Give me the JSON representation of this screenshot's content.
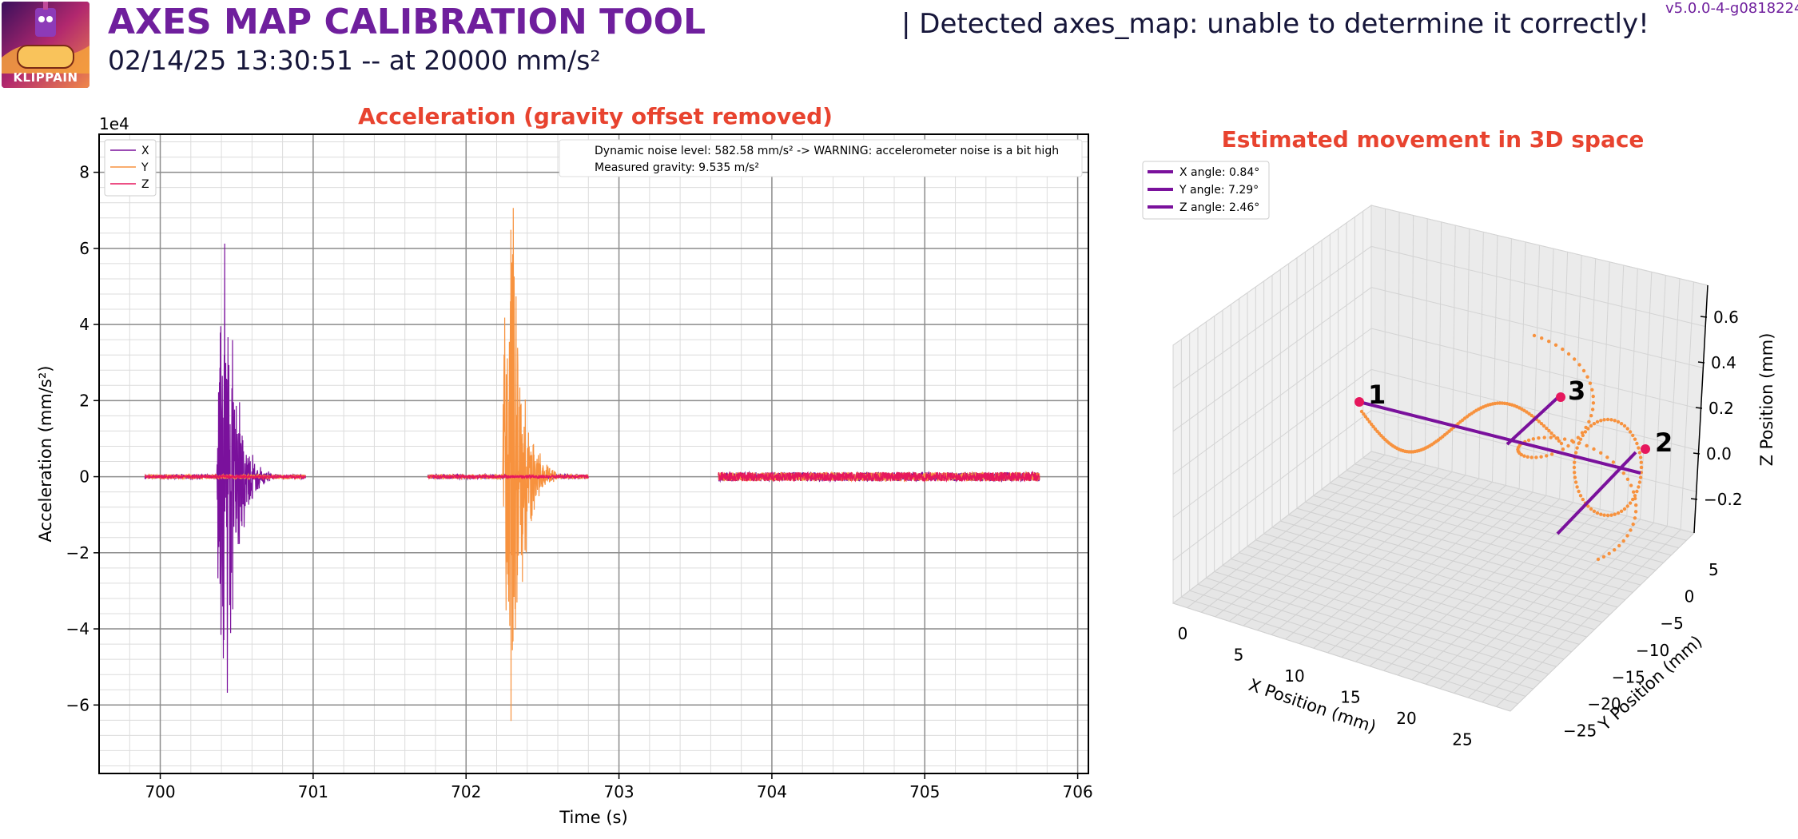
{
  "header": {
    "logo_text": "KLIPPAIN",
    "title": "AXES MAP CALIBRATION TOOL",
    "subtitle": "02/14/25 13:30:51 -- at 20000 mm/s²",
    "detected": "| Detected axes_map: unable to determine it correctly!",
    "version": "v5.0.0-4-g0818224"
  },
  "colors": {
    "x": "#7a119c",
    "y": "#f7923e",
    "z": "#e6175d",
    "title": "#e8432f",
    "brand": "#6f1f9d"
  },
  "chart_data": [
    {
      "type": "line",
      "title": "Acceleration (gravity offset removed)",
      "xlabel": "Time (s)",
      "ylabel": "Acceleration (mm/s²)",
      "y_scale_label": "1e4",
      "xlim": [
        699.6,
        706.07
      ],
      "ylim": [
        -7.8,
        9.0
      ],
      "x_ticks": [
        "700",
        "701",
        "702",
        "703",
        "704",
        "705",
        "706"
      ],
      "y_ticks": [
        "−6",
        "−4",
        "−2",
        "0",
        "2",
        "4",
        "6",
        "8"
      ],
      "grid": true,
      "legend_position": "top-left",
      "series": [
        {
          "name": "X",
          "color": "#7a119c",
          "segments": [
            [
              699.9,
              700.95
            ],
            [
              701.75,
              702.8
            ],
            [
              703.65,
              705.75
            ]
          ],
          "spike": [
            700.43,
            4.0,
            -7.0
          ]
        },
        {
          "name": "Y",
          "color": "#f7923e",
          "segments": [
            [
              699.9,
              700.95
            ],
            [
              701.75,
              702.8
            ],
            [
              703.65,
              705.75
            ]
          ],
          "spike": [
            702.3,
            8.3,
            -4.9
          ]
        },
        {
          "name": "Z",
          "color": "#e6175d",
          "segments": [
            [
              699.9,
              700.95
            ],
            [
              701.75,
              702.8
            ],
            [
              703.65,
              705.75
            ]
          ],
          "spike": null
        }
      ],
      "annotations": [
        "Dynamic noise level: 582.58 mm/s² -> WARNING: accelerometer noise is a bit high",
        "Measured gravity: 9.535 m/s²"
      ]
    },
    {
      "type": "scatter",
      "title": "Estimated movement in 3D space",
      "xlabel": "X Position (mm)",
      "ylabel": "Y Position (mm)",
      "zlabel": "Z Position (mm)",
      "x_ticks": [
        "0",
        "5",
        "10",
        "15",
        "20",
        "25"
      ],
      "y_ticks": [
        "5",
        "0",
        "−5",
        "−10",
        "−15",
        "−20",
        "−25"
      ],
      "z_ticks": [
        "0.6",
        "0.4",
        "0.2",
        "0.0",
        "−0.2"
      ],
      "legend": [
        "X angle: 0.84°",
        "Y angle: 7.29°",
        "Z angle: 2.46°"
      ],
      "point_labels": [
        "1",
        "2",
        "3"
      ],
      "points": [
        {
          "label": "1",
          "x": 0,
          "y": 0,
          "z": 0.15
        },
        {
          "label": "2",
          "x": 27,
          "y": -2,
          "z": 0.05
        },
        {
          "label": "3",
          "x": 13,
          "y": -20,
          "z": 0.25
        }
      ]
    }
  ]
}
